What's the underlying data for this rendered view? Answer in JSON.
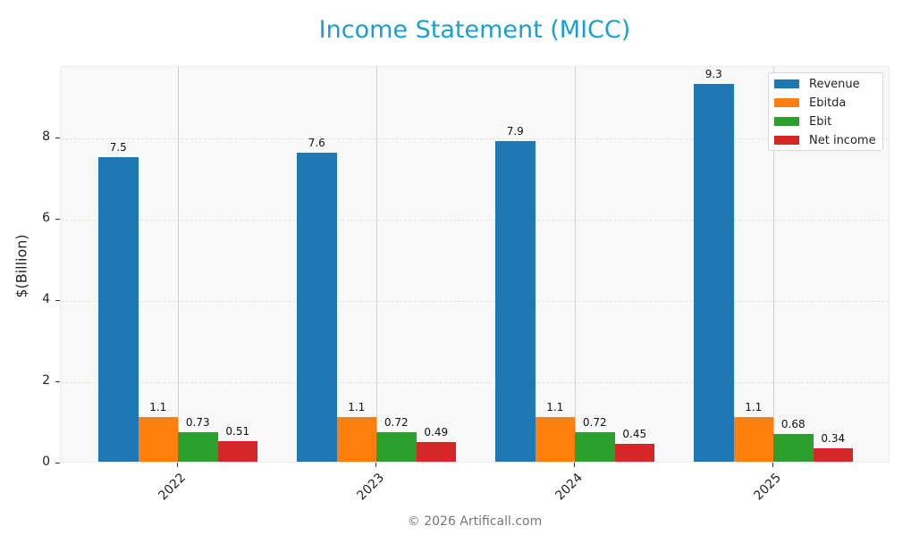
{
  "title": "Income Statement (MICC)",
  "footer": "© 2026 Artificall.com",
  "colors": {
    "Revenue": "#1f77b4",
    "Ebitda": "#ff7f0e",
    "Ebit": "#2ca02c",
    "Net income": "#d62728",
    "title": "#1a9fce"
  },
  "chart_data": {
    "type": "bar",
    "title": "Income Statement (MICC)",
    "xlabel": "",
    "ylabel": "$(Billion)",
    "categories": [
      "2022",
      "2023",
      "2024",
      "2025"
    ],
    "series": [
      {
        "name": "Revenue",
        "values": [
          7.5,
          7.6,
          7.9,
          9.3
        ],
        "labels": [
          "7.5",
          "7.6",
          "7.9",
          "9.3"
        ]
      },
      {
        "name": "Ebitda",
        "values": [
          1.1,
          1.1,
          1.1,
          1.1
        ],
        "labels": [
          "1.1",
          "1.1",
          "1.1",
          "1.1"
        ]
      },
      {
        "name": "Ebit",
        "values": [
          0.73,
          0.72,
          0.72,
          0.68
        ],
        "labels": [
          "0.73",
          "0.72",
          "0.72",
          "0.68"
        ]
      },
      {
        "name": "Net income",
        "values": [
          0.51,
          0.49,
          0.45,
          0.34
        ],
        "labels": [
          "0.51",
          "0.49",
          "0.45",
          "0.34"
        ]
      }
    ],
    "yticks": [
      "0",
      "2",
      "4",
      "6",
      "8"
    ],
    "ylim": [
      0,
      9.75
    ],
    "grid": true,
    "legend_position": "upper right"
  }
}
